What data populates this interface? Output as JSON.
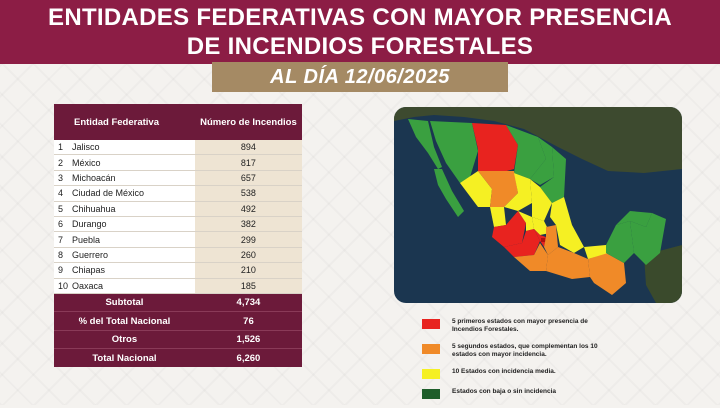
{
  "header": {
    "title_line1": "ENTIDADES FEDERATIVAS CON MAYOR PRESENCIA",
    "title_line2": "DE INCENDIOS FORESTALES",
    "date_label": "AL DÍA 12/06/2025"
  },
  "table": {
    "col_state": "Entidad Federativa",
    "col_count": "Número de Incendios",
    "rows": [
      {
        "rank": "1",
        "state": "Jalisco",
        "count": "894"
      },
      {
        "rank": "2",
        "state": "México",
        "count": "817"
      },
      {
        "rank": "3",
        "state": "Michoacán",
        "count": "657"
      },
      {
        "rank": "4",
        "state": "Ciudad de México",
        "count": "538"
      },
      {
        "rank": "5",
        "state": "Chihuahua",
        "count": "492"
      },
      {
        "rank": "6",
        "state": "Durango",
        "count": "382"
      },
      {
        "rank": "7",
        "state": "Puebla",
        "count": "299"
      },
      {
        "rank": "8",
        "state": "Guerrero",
        "count": "260"
      },
      {
        "rank": "9",
        "state": "Chiapas",
        "count": "210"
      },
      {
        "rank": "10",
        "state": "Oaxaca",
        "count": "185"
      }
    ],
    "summary": [
      {
        "label": "Subtotal",
        "value": "4,734"
      },
      {
        "label": "% del Total Nacional",
        "value": "76"
      },
      {
        "label": "Otros",
        "value": "1,526"
      },
      {
        "label": "Total Nacional",
        "value": "6,260"
      }
    ]
  },
  "legend": [
    {
      "color": "#e8231f",
      "text": "5 primeros estados con mayor presencia de Incendios Forestales."
    },
    {
      "color": "#f08a28",
      "text": "5 segundos estados, que complementan los 10 estados con mayor incidencia."
    },
    {
      "color": "#f5f023",
      "text": "10 Estados con incidencia media."
    },
    {
      "color": "#1e5e2a",
      "text": "Estados con baja o sin incidencia"
    }
  ],
  "colors": {
    "brand": "#8c1d45",
    "table_header": "#6c1a3a",
    "date_band": "#a58a64",
    "top5": "#e8231f",
    "next5": "#f08a28",
    "medium": "#f5f023",
    "low": "#3aa040",
    "ocean": "#1b3650"
  }
}
